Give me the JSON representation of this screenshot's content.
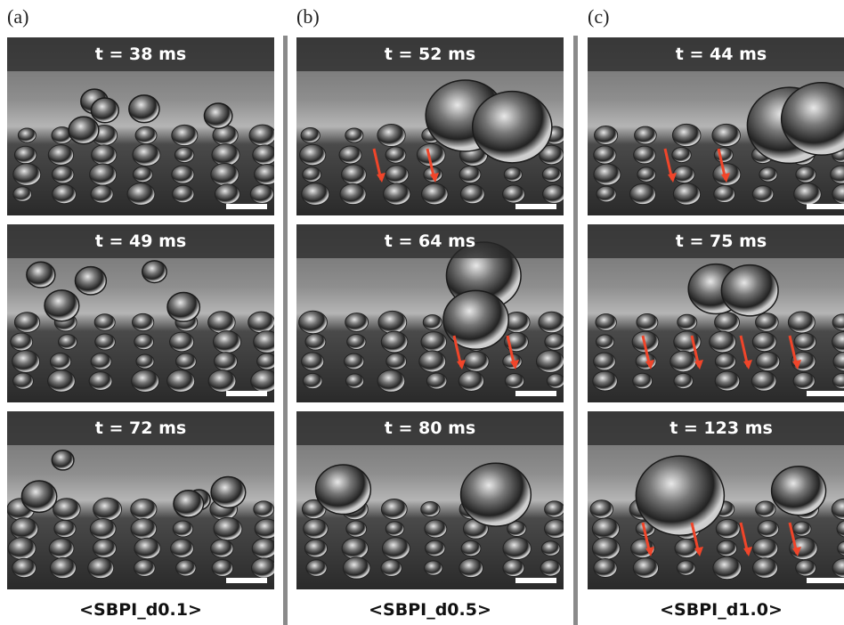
{
  "panels": [
    {
      "label": "(a)",
      "frames": [
        "t = 38 ms",
        "t = 49 ms",
        "t = 72 ms"
      ],
      "caption": "<SBPI_d0.1>"
    },
    {
      "label": "(b)",
      "frames": [
        "t = 52 ms",
        "t = 64 ms",
        "t = 80 ms"
      ],
      "caption": "<SBPI_d0.5>"
    },
    {
      "label": "(c)",
      "frames": [
        "t = 44 ms",
        "t = 75 ms",
        "t = 123 ms"
      ],
      "caption": "<SBPI_d1.0>"
    }
  ]
}
